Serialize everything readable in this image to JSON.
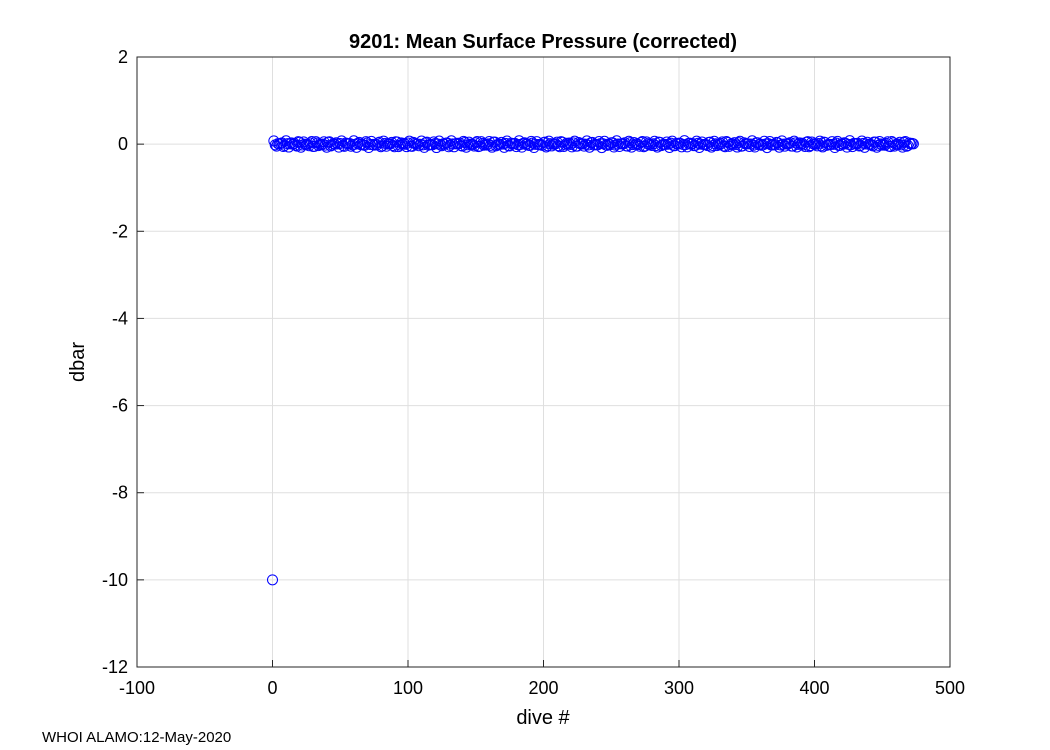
{
  "chart_data": {
    "type": "scatter",
    "title": "9201: Mean Surface Pressure (corrected)",
    "xlabel": "dive #",
    "ylabel": "dbar",
    "xlim": [
      -100,
      500
    ],
    "ylim": [
      -12,
      2
    ],
    "xticks": [
      -100,
      0,
      100,
      200,
      300,
      400,
      500
    ],
    "yticks": [
      2,
      0,
      -2,
      -4,
      -6,
      -8,
      -10,
      -12
    ],
    "grid": true,
    "marker": "circle-open",
    "color": "#0000ff",
    "series": [
      {
        "x_range": [
          1,
          473
        ],
        "y_typical": 0,
        "y_spread": 0.08,
        "outliers": [
          {
            "x": 0,
            "y": -10
          }
        ]
      }
    ]
  },
  "footer": "WHOI ALAMO:12-May-2020"
}
